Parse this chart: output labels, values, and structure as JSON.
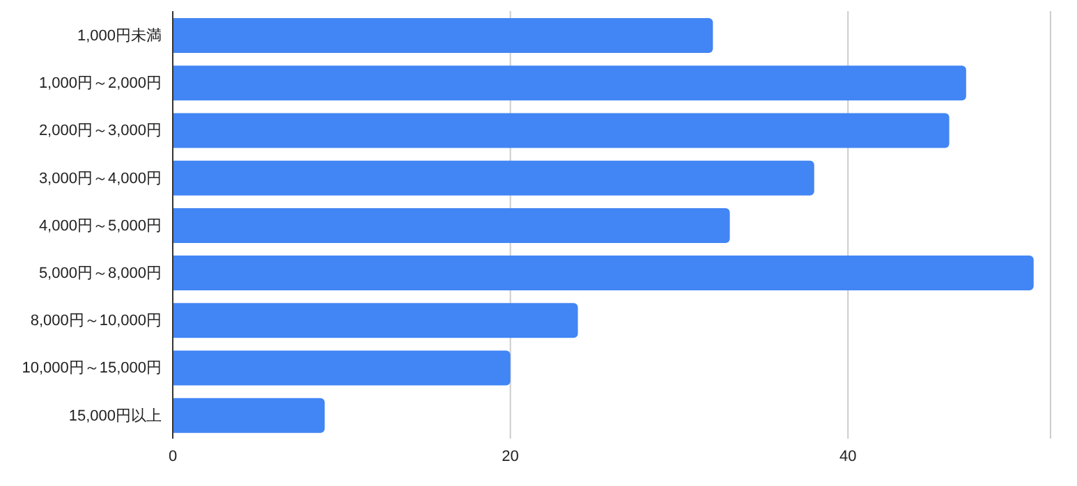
{
  "chart_data": {
    "type": "bar",
    "orientation": "horizontal",
    "categories": [
      "1,000円未満",
      "1,000円～2,000円",
      "2,000円～3,000円",
      "3,000円～4,000円",
      "4,000円～5,000円",
      "5,000円～8,000円",
      "8,000円～10,000円",
      "10,000円～15,000円",
      "15,000円以上"
    ],
    "values": [
      32,
      47,
      46,
      38,
      33,
      51,
      24,
      20,
      9
    ],
    "color": "#4285f4",
    "xlim": [
      0,
      52
    ],
    "xticks": [
      0,
      20,
      40
    ],
    "grid": "x",
    "legend": false
  }
}
